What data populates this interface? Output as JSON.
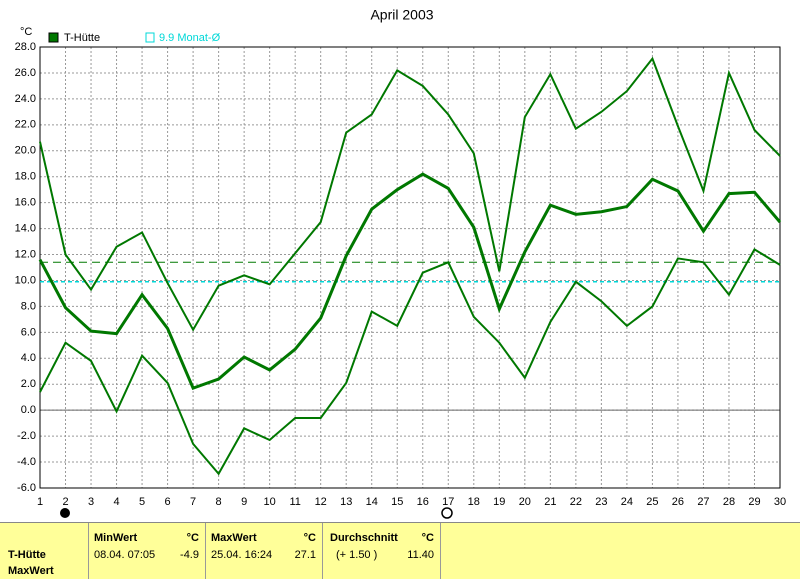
{
  "chart_data": {
    "type": "line",
    "title": "April 2003",
    "y_unit": "°C",
    "x": [
      1,
      2,
      3,
      4,
      5,
      6,
      7,
      8,
      9,
      10,
      11,
      12,
      13,
      14,
      15,
      16,
      17,
      18,
      19,
      20,
      21,
      22,
      23,
      24,
      25,
      26,
      27,
      28,
      29,
      30
    ],
    "xlim": [
      1,
      30
    ],
    "xticks": [
      1,
      2,
      3,
      4,
      5,
      6,
      7,
      8,
      9,
      10,
      11,
      12,
      13,
      14,
      15,
      16,
      17,
      18,
      19,
      20,
      21,
      22,
      23,
      24,
      25,
      26,
      27,
      28,
      29,
      30
    ],
    "ylim": [
      -6,
      28
    ],
    "yticks": [
      {
        "value": -6,
        "label": "-6.0"
      },
      {
        "value": -4,
        "label": "-4.0"
      },
      {
        "value": -2,
        "label": "-2.0"
      },
      {
        "value": 0,
        "label": "0.0"
      },
      {
        "value": 2,
        "label": "2.0"
      },
      {
        "value": 4,
        "label": "4.0"
      },
      {
        "value": 6,
        "label": "6.0"
      },
      {
        "value": 8,
        "label": "8.0"
      },
      {
        "value": 10,
        "label": "10.0"
      },
      {
        "value": 12,
        "label": "12.0"
      },
      {
        "value": 14,
        "label": "14.0"
      },
      {
        "value": 16,
        "label": "16.0"
      },
      {
        "value": 18,
        "label": "18.0"
      },
      {
        "value": 20,
        "label": "20.0"
      },
      {
        "value": 22,
        "label": "22.0"
      },
      {
        "value": 24,
        "label": "24.0"
      },
      {
        "value": 26,
        "label": "26.0"
      },
      {
        "value": 28,
        "label": "28.0"
      }
    ],
    "grid": true,
    "series": [
      {
        "name": "T-Hütte",
        "color": "#007800",
        "values": [
          11.6,
          7.9,
          6.1,
          5.9,
          8.9,
          6.3,
          1.7,
          2.4,
          4.1,
          3.1,
          4.7,
          7.1,
          11.9,
          15.5,
          17.0,
          18.2,
          17.1,
          14.1,
          7.8,
          12.2,
          15.8,
          15.1,
          15.3,
          15.7,
          17.8,
          16.9,
          13.8,
          16.7,
          16.8,
          14.5
        ],
        "high": [
          20.7,
          12.0,
          9.3,
          12.6,
          13.7,
          9.8,
          6.2,
          9.6,
          10.4,
          9.7,
          12.1,
          14.5,
          21.4,
          22.8,
          26.2,
          25.0,
          22.8,
          19.8,
          10.7,
          22.6,
          25.9,
          21.7,
          23.0,
          24.6,
          27.1,
          21.9,
          16.9,
          26.0,
          21.6,
          19.6
        ],
        "low": [
          1.4,
          5.2,
          3.8,
          -0.1,
          4.2,
          2.1,
          -2.6,
          -4.9,
          -1.4,
          -2.3,
          -0.6,
          -0.6,
          2.1,
          7.6,
          6.5,
          10.6,
          11.4,
          7.2,
          5.2,
          2.5,
          6.8,
          9.9,
          8.4,
          6.5,
          8.0,
          11.7,
          11.4,
          8.9,
          12.4,
          11.2
        ],
        "mean_line": 11.4
      }
    ],
    "reference": {
      "label": "9.9 Monat-Ø",
      "value": 9.9,
      "color": "#00d8d8"
    }
  },
  "table": {
    "headers": [
      "MinWert",
      "°C",
      "MaxWert",
      "°C",
      "Durchschnitt",
      "°C"
    ],
    "row_labels": [
      "T-Hütte",
      "MaxWert"
    ],
    "cells": [
      "08.04.  07:05",
      "-4.9",
      "25.04.  16:24",
      "27.1",
      "(+ 1.50 )",
      "11.40"
    ]
  }
}
